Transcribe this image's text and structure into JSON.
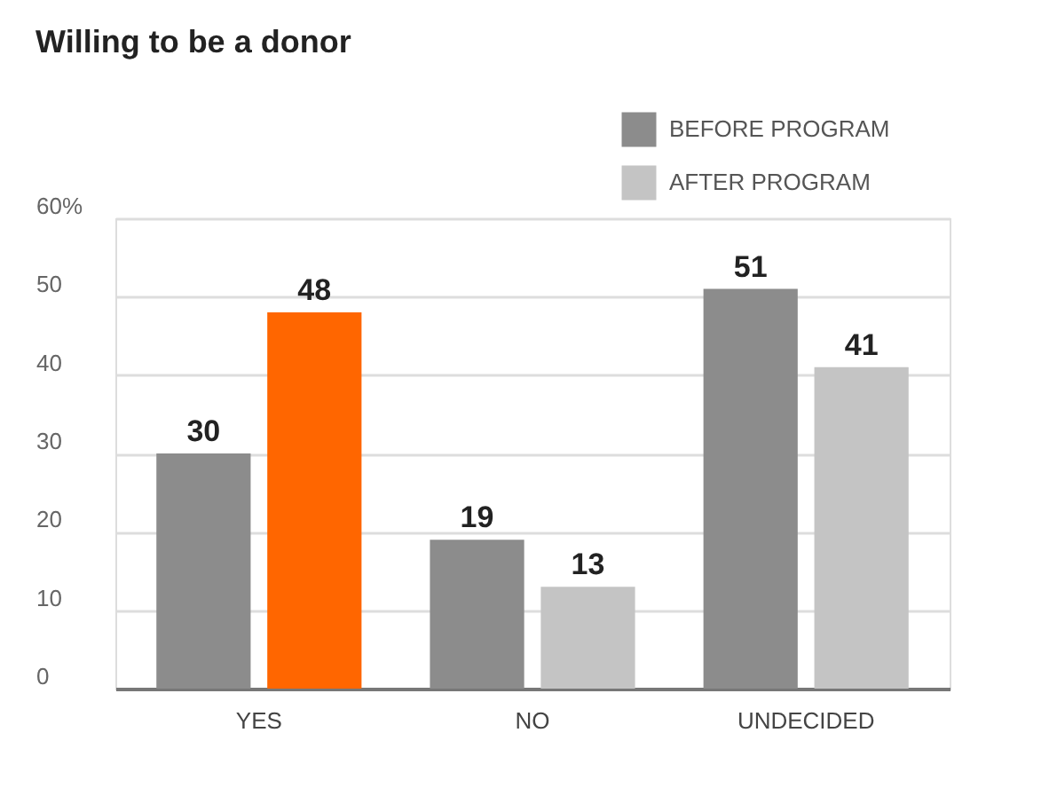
{
  "chart_data": {
    "type": "bar",
    "title": "Willing to be a donor",
    "categories": [
      "YES",
      "NO",
      "UNDECIDED"
    ],
    "series": [
      {
        "name": "BEFORE PROGRAM",
        "color": "#8c8c8c",
        "values": [
          30,
          19,
          51
        ]
      },
      {
        "name": "AFTER PROGRAM",
        "color": "#c4c4c4",
        "colors": [
          "#ff6600",
          "#c4c4c4",
          "#c4c4c4"
        ],
        "values": [
          48,
          13,
          41
        ]
      }
    ],
    "ylim": [
      0,
      60
    ],
    "yticks": [
      0,
      10,
      20,
      30,
      40,
      50,
      {
        "value": 60,
        "label": "60%"
      }
    ],
    "grid": "y",
    "legend": "top right",
    "data_labels": true
  }
}
